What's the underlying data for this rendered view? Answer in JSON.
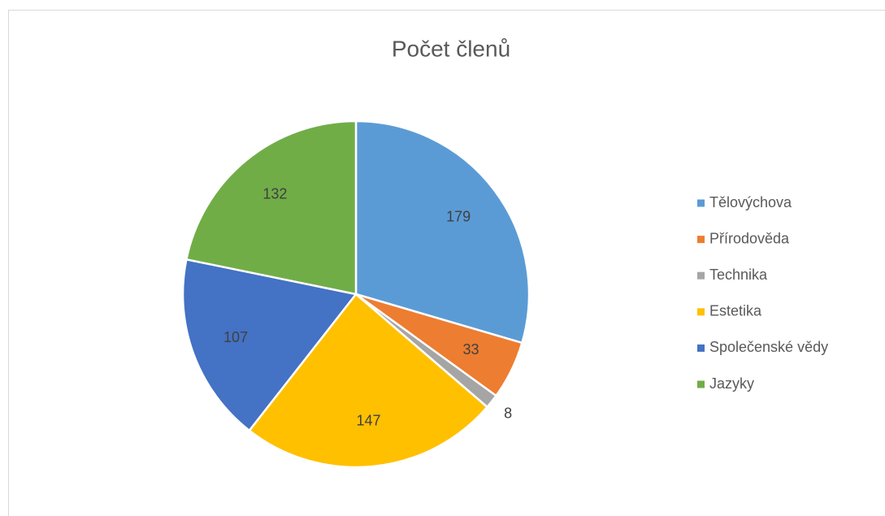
{
  "chart_data": {
    "type": "pie",
    "title": "Počet členů",
    "categories": [
      "Tělovýchova",
      "Přírodověda",
      "Technika",
      "Estetika",
      "Společenské vědy",
      "Jazyky"
    ],
    "values": [
      179,
      33,
      8,
      147,
      107,
      132
    ],
    "colors": [
      "#5b9bd5",
      "#ed7d31",
      "#a5a5a5",
      "#ffc000",
      "#4472c4",
      "#70ad47"
    ],
    "legend": "right"
  }
}
